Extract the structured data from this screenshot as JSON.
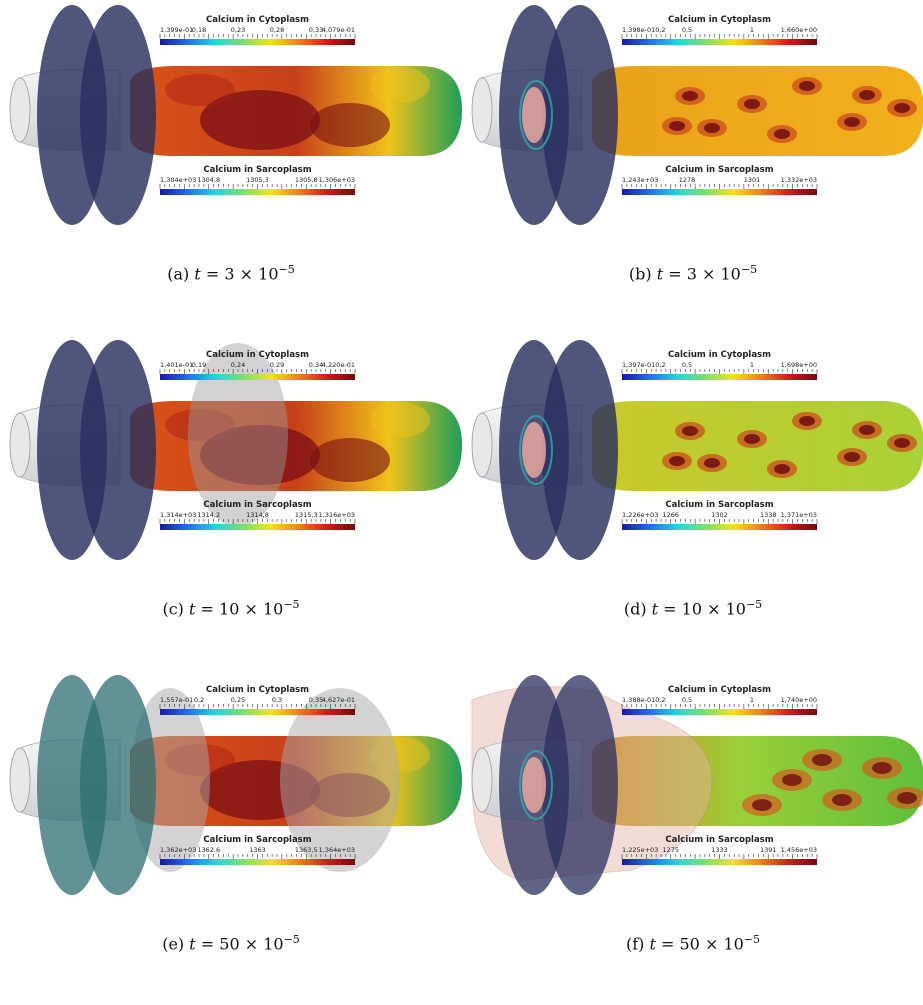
{
  "colors": {
    "disc_dark": "#2a2f5e",
    "disc_teal": "#2d6e72",
    "cylinder_high": "#7a0f14",
    "cylinder_mid": "#d9541a",
    "cylinder_low": "#f0c21a",
    "cylinder_cool": "#1f9e5a",
    "scale_gradient": [
      "#1a1a9e",
      "#1f6ff0",
      "#20d8d8",
      "#7de06a",
      "#f3e21e",
      "#f07d1a",
      "#d11a1a",
      "#6e0b10"
    ]
  },
  "panels": [
    {
      "id": "a",
      "caption": {
        "prefix": "(a) ",
        "var": "t",
        "rel": " = 3 × 10",
        "exp": "−5"
      },
      "top_bar": {
        "title": "Calcium in Cytoplasm",
        "ticks": [
          "1,399e-01",
          "0,18",
          "0,23",
          "0,28",
          "0,33",
          "4,079e-01"
        ]
      },
      "bottom_bar": {
        "title": "Calcium in Sarcoplasm",
        "ticks": [
          "1,304e+03",
          "1304,8",
          "1305,3",
          "1305,8",
          "1,306e+03"
        ]
      },
      "style": "a"
    },
    {
      "id": "b",
      "caption": {
        "prefix": "(b) ",
        "var": "t",
        "rel": " = 3 × 10",
        "exp": "−5"
      },
      "top_bar": {
        "title": "Calcium in Cytoplasm",
        "ticks": [
          "1,398e-010,2",
          "0,5",
          "1",
          "1,660e+00"
        ]
      },
      "bottom_bar": {
        "title": "Calcium in Sarcoplasm",
        "ticks": [
          "1,243e+03",
          "1278",
          "1301",
          "1,332e+03"
        ]
      },
      "style": "b"
    },
    {
      "id": "c",
      "caption": {
        "prefix": "(c) ",
        "var": "t",
        "rel": " = 10 × 10",
        "exp": "−5"
      },
      "top_bar": {
        "title": "Calcium in Cytoplasm",
        "ticks": [
          "1,401e-01",
          "0,19",
          "0,24",
          "0,29",
          "0,34",
          "4,220e-01"
        ]
      },
      "bottom_bar": {
        "title": "Calcium in Sarcoplasm",
        "ticks": [
          "1,314e+03",
          "1314,2",
          "1314,8",
          "1315,3",
          "1,316e+03"
        ]
      },
      "style": "a"
    },
    {
      "id": "d",
      "caption": {
        "prefix": "(d) ",
        "var": "t",
        "rel": " = 10 × 10",
        "exp": "−5"
      },
      "top_bar": {
        "title": "Calcium in Cytoplasm",
        "ticks": [
          "1,397e-010,2",
          "0,5",
          "1",
          "1,698e+00"
        ]
      },
      "bottom_bar": {
        "title": "Calcium in Sarcoplasm",
        "ticks": [
          "1,226e+03",
          "1266",
          "1302",
          "1338",
          "1,371e+03"
        ]
      },
      "style": "b"
    },
    {
      "id": "e",
      "caption": {
        "prefix": "(e) ",
        "var": "t",
        "rel": " = 50 × 10",
        "exp": "−5"
      },
      "top_bar": {
        "title": "Calcium in Cytoplasm",
        "ticks": [
          "1,557e-01",
          "0,2",
          "0,25",
          "0,3",
          "0,35",
          "4,627e-01"
        ]
      },
      "bottom_bar": {
        "title": "Calcium in Sarcoplasm",
        "ticks": [
          "1,362e+03",
          "1362,6",
          "1363",
          "1363,5",
          "1,364e+03"
        ]
      },
      "style": "e"
    },
    {
      "id": "f",
      "caption": {
        "prefix": "(f) ",
        "var": "t",
        "rel": " = 50 × 10",
        "exp": "−5"
      },
      "top_bar": {
        "title": "Calcium in Cytoplasm",
        "ticks": [
          "1,388e-010,2",
          "0,5",
          "1",
          "1,740e+00"
        ]
      },
      "bottom_bar": {
        "title": "Calcium in Sarcoplasm",
        "ticks": [
          "1,225e+03",
          "1275",
          "1333",
          "1391",
          "1,456e+03"
        ]
      },
      "style": "f"
    }
  ]
}
